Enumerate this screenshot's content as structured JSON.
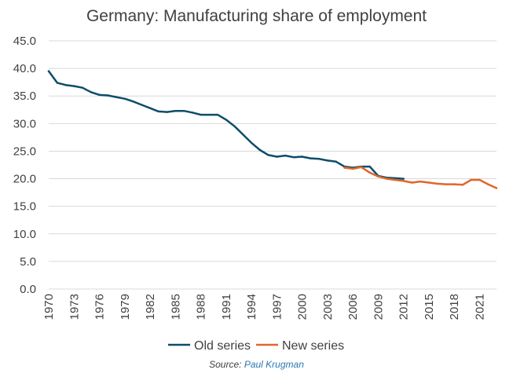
{
  "chart_data": {
    "type": "line",
    "title": "Germany: Manufacturing share of employment",
    "xlabel": "",
    "ylabel": "",
    "xlim": [
      1970,
      2023
    ],
    "ylim": [
      0,
      45
    ],
    "yticks": [
      "0.0",
      "5.0",
      "10.0",
      "15.0",
      "20.0",
      "25.0",
      "30.0",
      "35.0",
      "40.0",
      "45.0"
    ],
    "xticks": [
      "1970",
      "1973",
      "1976",
      "1979",
      "1982",
      "1985",
      "1988",
      "1991",
      "1994",
      "1997",
      "2000",
      "2003",
      "2006",
      "2009",
      "2012",
      "2015",
      "2018",
      "2021"
    ],
    "grid": true,
    "legend": "bottom",
    "series": [
      {
        "name": "Old series",
        "color": "#0e4d6b",
        "x": [
          1970,
          1971,
          1972,
          1973,
          1974,
          1975,
          1976,
          1977,
          1978,
          1979,
          1980,
          1981,
          1982,
          1983,
          1984,
          1985,
          1986,
          1987,
          1988,
          1989,
          1990,
          1991,
          1992,
          1993,
          1994,
          1995,
          1996,
          1997,
          1998,
          1999,
          2000,
          2001,
          2002,
          2003,
          2004,
          2005,
          2006,
          2007,
          2008,
          2009,
          2010,
          2011,
          2012
        ],
        "values": [
          39.5,
          37.4,
          37.0,
          36.8,
          36.5,
          35.7,
          35.2,
          35.1,
          34.8,
          34.5,
          34.0,
          33.4,
          32.8,
          32.2,
          32.1,
          32.3,
          32.3,
          32.0,
          31.6,
          31.6,
          31.6,
          30.7,
          29.5,
          28.0,
          26.5,
          25.2,
          24.3,
          24.0,
          24.2,
          23.9,
          24.0,
          23.7,
          23.6,
          23.3,
          23.1,
          22.2,
          22.0,
          22.2,
          22.2,
          20.5,
          20.2,
          20.1,
          20.0
        ]
      },
      {
        "name": "New series",
        "color": "#e0672a",
        "x": [
          2005,
          2006,
          2007,
          2008,
          2009,
          2010,
          2011,
          2012,
          2013,
          2014,
          2015,
          2016,
          2017,
          2018,
          2019,
          2020,
          2021,
          2022,
          2023
        ],
        "values": [
          22.0,
          21.8,
          22.1,
          21.1,
          20.4,
          20.0,
          19.8,
          19.6,
          19.3,
          19.5,
          19.3,
          19.1,
          19.0,
          19.0,
          18.9,
          19.8,
          19.8,
          19.0,
          18.3
        ]
      }
    ]
  },
  "source": {
    "prefix": "Source: ",
    "author": "Paul Krugman"
  }
}
